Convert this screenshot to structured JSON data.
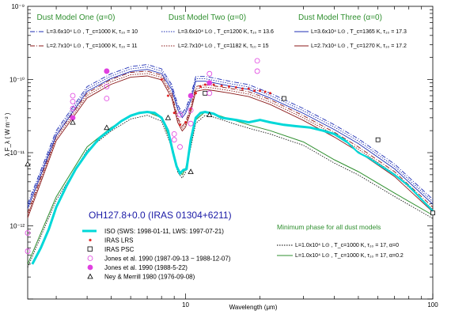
{
  "chart_data": {
    "type": "line",
    "title": "",
    "xlabel": "Wavelength (μm)",
    "ylabel": "λ F_λ ( W m⁻² )",
    "x_scale": "log",
    "y_scale": "log",
    "xlim": [
      2.3,
      100
    ],
    "ylim": [
      1e-13,
      1e-09
    ],
    "x_tick_labels": [
      "10",
      "100"
    ],
    "y_tick_labels": [
      "10⁻¹²",
      "10⁻¹¹",
      "10⁻¹⁰",
      "10⁻⁹"
    ],
    "object_label": "OH127.8+0.0 (IRAS 01304+6211)",
    "model_groups": [
      {
        "title": "Dust Model One (α=0)",
        "entries": [
          {
            "label": "L=3.6x10⁴ L⊙ , T_c=1000 K, τ₁₀ = 10",
            "color": "#1f2fb5",
            "dash": "6,2,1,2"
          },
          {
            "label": "L=2.7x10⁴ L⊙ , T_c=1000 K, τ₁₀ = 11",
            "color": "#8b1a1a",
            "dash": "6,2,1,2"
          }
        ]
      },
      {
        "title": "Dust Model Two (α=0)",
        "entries": [
          {
            "label": "L=3.6x10⁴ L⊙ , T_c=1200 K, τ₁₀ = 13.6",
            "color": "#1f2fb5",
            "dash": "1.5,1.5"
          },
          {
            "label": "L=2.7x10⁴ L⊙ , T_c=1182 K, τ₁₀ = 15",
            "color": "#8b1a1a",
            "dash": "1.5,1.5"
          }
        ]
      },
      {
        "title": "Dust Model Three (α=0)",
        "entries": [
          {
            "label": "L=3.6x10⁴ L⊙ , T_c=1365 K, τ₁₀ = 17.3",
            "color": "#1f2fb5",
            "dash": ""
          },
          {
            "label": "L=2.7x10⁴ L⊙ , T_c=1270 K, τ₁₀ = 17.2",
            "color": "#8b1a1a",
            "dash": ""
          }
        ]
      }
    ],
    "observations_legend": [
      {
        "label": "ISO (SWS: 1998-01-11, LWS: 1997-07-21)",
        "marker": "thick-line",
        "color": "#00d8d8"
      },
      {
        "label": "IRAS LRS",
        "marker": "star",
        "color": "#e02020"
      },
      {
        "label": "IRAS PSC",
        "marker": "open-square",
        "color": "#000000"
      },
      {
        "label": "Jones et al. 1990 (1987-09-13 ~ 1988-12-07)",
        "marker": "open-circle",
        "color": "#e040e0"
      },
      {
        "label": "Jones et al. 1990 (1988-5-22)",
        "marker": "filled-circle",
        "color": "#e040e0"
      },
      {
        "label": "Ney & Merrill 1980 (1976-09-08)",
        "marker": "open-triangle",
        "color": "#000000"
      }
    ],
    "minimum_phase": {
      "title": "Minimum phase for all dust models",
      "entries": [
        {
          "label": "L=1.0x10⁴ L⊙ , T_c=1000 K, τ₁₀ = 17, α=0",
          "color": "#000000",
          "dash": "1.5,1.5"
        },
        {
          "label": "L=1.0x10⁴ L⊙ , T_c=1000 K, τ₁₀ = 17, α=0.2",
          "color": "#2f8f2f",
          "dash": ""
        }
      ]
    },
    "model_max_blue": {
      "x": [
        2.3,
        3,
        4,
        5,
        6,
        7,
        8,
        8.8,
        9.3,
        9.7,
        10,
        10.5,
        11,
        12,
        13,
        15,
        18,
        22,
        30,
        40,
        50,
        70,
        100
      ],
      "y": [
        2e-12,
        2e-11,
        8e-11,
        1.2e-10,
        1.5e-10,
        1.6e-10,
        1.4e-10,
        8.5e-11,
        4.5e-11,
        3.5e-11,
        4e-11,
        6e-11,
        1.1e-10,
        1.1e-10,
        1.05e-10,
        9.5e-11,
        8.5e-11,
        6.5e-11,
        4e-11,
        2.4e-11,
        1.55e-11,
        7e-12,
        2.3e-12
      ]
    },
    "model_max_red": {
      "x": [
        2.3,
        3,
        4,
        5,
        6,
        7,
        8,
        8.8,
        9.3,
        9.7,
        10,
        10.5,
        11,
        12,
        13,
        15,
        18,
        22,
        30,
        40,
        50,
        70,
        100
      ],
      "y": [
        1.5e-12,
        1.7e-11,
        6.5e-11,
        1e-10,
        1.25e-10,
        1.3e-10,
        1.15e-10,
        6.5e-11,
        3e-11,
        2.3e-11,
        2.6e-11,
        4.2e-11,
        8e-11,
        8.5e-11,
        8.2e-11,
        7.6e-11,
        6.8e-11,
        5.3e-11,
        3.2e-11,
        1.9e-11,
        1.2e-11,
        5.5e-12,
        1.8e-12
      ]
    },
    "model_min": {
      "x": [
        2.3,
        3,
        4,
        5,
        6,
        7,
        8,
        8.8,
        9.3,
        9.7,
        10,
        10.5,
        11,
        12,
        13,
        15,
        18,
        22,
        30,
        40,
        50,
        70,
        100
      ],
      "y": [
        3e-13,
        2.5e-12,
        1.2e-11,
        2.2e-11,
        3.2e-11,
        3.6e-11,
        3e-11,
        1.3e-11,
        6e-12,
        5e-12,
        6e-12,
        1.3e-11,
        2.8e-11,
        3.6e-11,
        3.4e-11,
        2.9e-11,
        2.4e-11,
        2e-11,
        1.4e-11,
        8e-12,
        5.5e-12,
        2.8e-12,
        1.4e-12
      ]
    },
    "iso_sws": {
      "x": [
        2.4,
        2.6,
        2.8,
        3.0,
        3.3,
        3.6,
        4.0,
        4.5,
        5.0,
        5.5,
        6.0,
        6.5,
        7.0,
        7.5,
        8.0,
        8.5,
        8.9,
        9.2,
        9.5,
        9.8,
        10.1,
        10.5,
        11.0,
        11.5,
        12.0,
        13.0,
        14.0,
        16.0,
        18.0,
        20.0,
        22.0,
        25.0,
        28.0,
        32.0,
        36.0,
        40.0,
        45.0
      ],
      "y": [
        3e-13,
        5e-13,
        9e-13,
        1.8e-12,
        3.5e-12,
        6e-12,
        1e-11,
        1.6e-11,
        2.1e-11,
        2.7e-11,
        3.2e-11,
        3.5e-11,
        3.6e-11,
        3.5e-11,
        3e-11,
        2e-11,
        1e-11,
        6.5e-12,
        5.2e-12,
        5.8e-12,
        6e-12,
        1.5e-11,
        3e-11,
        3.5e-11,
        3.6e-11,
        3.4e-11,
        3e-11,
        2.8e-11,
        2.6e-11,
        2.8e-11,
        2.6e-11,
        2.4e-11,
        2.3e-11,
        2.2e-11,
        2e-11,
        1.8e-11,
        1.4e-11
      ]
    },
    "iso_lws": {
      "x": [
        45,
        50,
        55,
        60,
        70,
        80,
        90,
        100
      ],
      "y": [
        1.4e-11,
        1e-11,
        8.5e-12,
        7e-12,
        5e-12,
        3.5e-12,
        2.3e-12,
        1.6e-12
      ]
    },
    "iras_lrs": {
      "x": [
        8.0,
        8.5,
        9.0,
        9.5,
        10.0,
        10.5,
        11.0,
        11.5,
        12.0,
        13.0,
        14.0,
        15.0,
        16.0,
        17.0,
        18.0,
        19.0,
        20.0,
        21.0,
        22.0
      ],
      "y": [
        1e-10,
        6e-11,
        3.5e-11,
        2.4e-11,
        2.6e-11,
        4e-11,
        6.5e-11,
        8e-11,
        8.5e-11,
        8.5e-11,
        8.2e-11,
        8e-11,
        7.8e-11,
        7.5e-11,
        7.5e-11,
        7e-11,
        7e-11,
        6.8e-11,
        6.5e-11
      ]
    },
    "iras_psc": {
      "x": [
        12,
        25,
        60,
        100
      ],
      "y": [
        6.5e-11,
        5.5e-11,
        1.5e-11,
        1.5e-12
      ]
    },
    "jones_range": {
      "x": [
        2.3,
        2.3,
        3.5,
        3.5,
        3.5,
        4.8,
        4.8,
        4.8,
        9.0,
        9.0,
        9.5,
        9.5,
        10.5,
        10.5,
        12.5,
        12.5,
        19.5,
        19.5
      ],
      "y": [
        4.5e-13,
        8e-13,
        6e-11,
        5e-11,
        4e-11,
        8e-11,
        5.5e-11,
        1.3e-10,
        1.8e-11,
        1.5e-11,
        1.2e-11,
        3.3e-11,
        3.8e-11,
        2.5e-11,
        6.5e-11,
        1.2e-10,
        1.3e-10,
        1.8e-10
      ]
    },
    "jones_1988": {
      "x": [
        3.5,
        4.8,
        10.5,
        12.5
      ],
      "y": [
        3e-11,
        1.3e-10,
        6e-11,
        9e-11
      ]
    },
    "ney_merrill": {
      "x": [
        2.3,
        3.5,
        4.8,
        8.5,
        10.5,
        12.5
      ],
      "y": [
        7e-12,
        2.6e-11,
        2.2e-11,
        3e-11,
        5.5e-12,
        3.3e-11
      ]
    }
  }
}
